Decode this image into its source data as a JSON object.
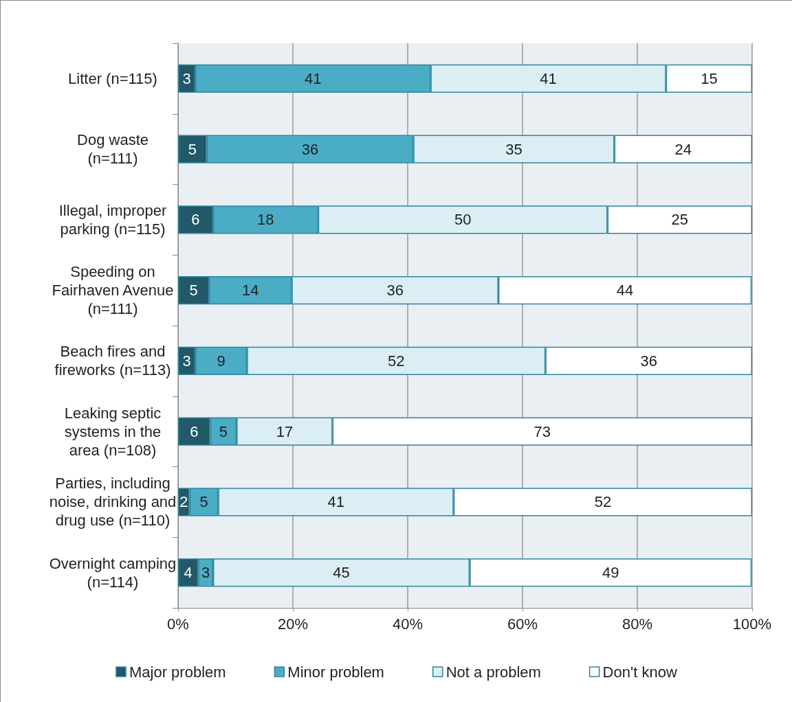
{
  "chart_data": {
    "type": "bar",
    "orientation": "horizontal",
    "stacked": true,
    "grid": "x",
    "legend": "bottom",
    "categories": [
      "Litter (n=115)",
      "Dog waste\n(n=111)",
      "Illegal, improper\nparking (n=115)",
      "Speeding on\nFairhaven Avenue\n(n=111)",
      "Beach fires and\nfireworks (n=113)",
      "Leaking septic\nsystems in the\narea (n=108)",
      "Parties, including\nnoise, drinking and\ndrug use (n=110)",
      "Overnight camping\n(n=114)"
    ],
    "series": [
      {
        "name": "Major problem",
        "color": "#215968",
        "values": [
          3,
          5,
          6.1,
          5.4,
          3,
          5.6,
          2,
          3.5
        ],
        "value_labels": [
          "3",
          "5",
          "6",
          "5",
          "3",
          "6",
          "2",
          "4"
        ]
      },
      {
        "name": "Minor problem",
        "color": "#4bacc6",
        "values": [
          41,
          36,
          18.3,
          14.4,
          9,
          4.6,
          5,
          2.6
        ],
        "value_labels": [
          "41",
          "36",
          "18",
          "14",
          "9",
          "5",
          "5",
          "3"
        ]
      },
      {
        "name": "Not a problem",
        "color": "#dbeef4",
        "values": [
          41,
          35,
          50.4,
          36,
          52,
          16.7,
          41,
          44.7
        ],
        "value_labels": [
          "41",
          "35",
          "50",
          "36",
          "52",
          "17",
          "41",
          "45"
        ]
      },
      {
        "name": "Don't know",
        "color": "#ffffff",
        "values": [
          15,
          24,
          25.2,
          44.1,
          36,
          73.1,
          52,
          49.1
        ],
        "value_labels": [
          "15",
          "24",
          "25",
          "44",
          "36",
          "73",
          "52",
          "49"
        ]
      }
    ],
    "xlim": [
      0,
      100
    ],
    "xticks": [
      {
        "value": 0,
        "label": "0%"
      },
      {
        "value": 20,
        "label": "20%"
      },
      {
        "value": 40,
        "label": "40%"
      },
      {
        "value": 60,
        "label": "60%"
      },
      {
        "value": 80,
        "label": "80%"
      },
      {
        "value": 100,
        "label": "100%"
      }
    ]
  }
}
